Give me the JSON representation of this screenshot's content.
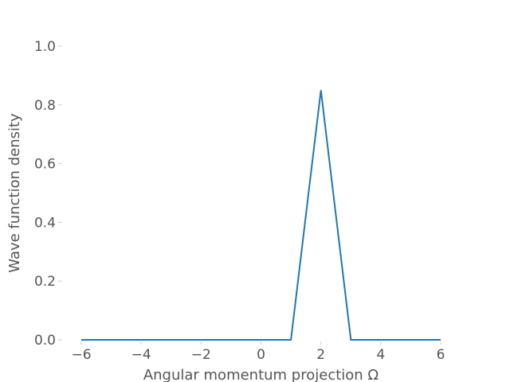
{
  "chart_data": {
    "type": "line",
    "xlabel": "Angular momentum projection Ω",
    "ylabel": "Wave function density",
    "xlim": [
      -6,
      6
    ],
    "ylim": [
      0,
      1.0
    ],
    "xticks": [
      -6,
      -4,
      -2,
      0,
      2,
      4,
      6
    ],
    "xtick_labels": [
      "−6",
      "−4",
      "−2",
      "0",
      "2",
      "4",
      "6"
    ],
    "yticks": [
      0.0,
      0.2,
      0.4,
      0.6,
      0.8,
      1.0
    ],
    "ytick_labels": [
      "0.0",
      "0.2",
      "0.4",
      "0.6",
      "0.8",
      "1.0"
    ],
    "grid": false,
    "series": [
      {
        "color": "#1f77b4",
        "x": [
          -6,
          -5,
          -4,
          -3,
          -2,
          -1,
          0,
          1,
          2,
          3,
          4,
          5,
          6
        ],
        "y": [
          0,
          0,
          0,
          0,
          0,
          0,
          0,
          0,
          0.85,
          0,
          0,
          0,
          0
        ]
      }
    ]
  }
}
